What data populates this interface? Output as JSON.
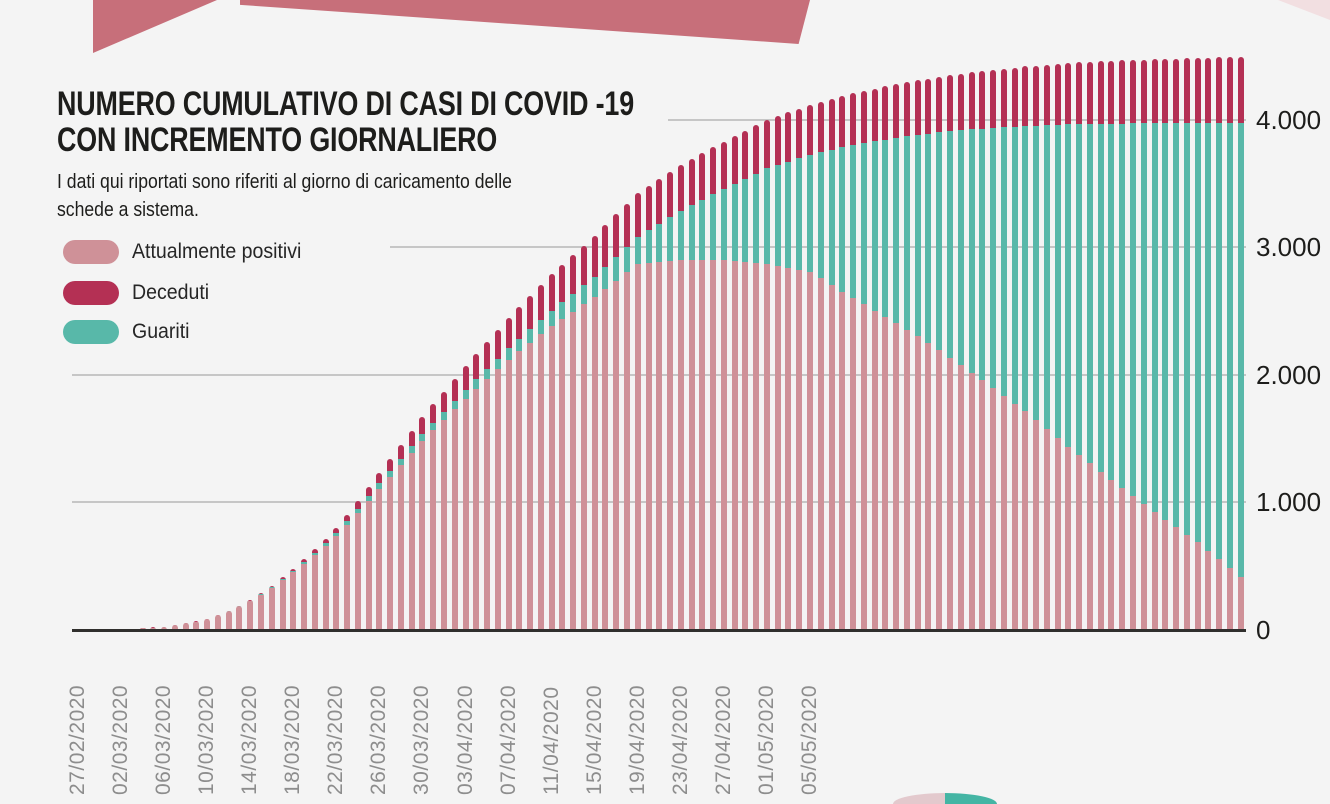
{
  "header": {
    "title_line1": "NUMERO CUMULATIVO DI CASI DI COVID -19",
    "title_line2": "CON INCREMENTO GIORNALIERO",
    "subtitle_line1": "I dati qui riportati sono riferiti al giorno di caricamento delle",
    "subtitle_line2": "schede a sistema."
  },
  "legend": [
    {
      "label": "Attualmente positivi",
      "color": "#cf9198"
    },
    {
      "label": "Deceduti",
      "color": "#b43054"
    },
    {
      "label": "Guariti",
      "color": "#58b8a9"
    }
  ],
  "colors": {
    "background": "#f4f4f4",
    "positivi": "#cf9198",
    "deceduti": "#b43054",
    "guariti": "#58b8a9",
    "gridline": "#c6c6c6",
    "axis_line": "#302f2d",
    "x_label_gray": "#8d8d8d",
    "text_dark": "#1d1d1b",
    "decor_rose": "#c76f7a",
    "decor_pale_pink": "#f2dfe1",
    "decor_hump_pink": "#e3c9cd",
    "decor_hump_teal": "#44b5a4"
  },
  "chart_data": {
    "type": "bar",
    "stacked": true,
    "title": "NUMERO CUMULATIVO DI CASI DI COVID -19 CON INCREMENTO GIORNALIERO",
    "grid": "horizontal",
    "legend_position": "top-left",
    "ylim": [
      0,
      4500
    ],
    "y_tick_values": [
      0,
      1000,
      2000,
      3000,
      4000
    ],
    "y_tick_labels": [
      "0",
      "1.000",
      "2.000",
      "3.000",
      "4.000"
    ],
    "x_start_date": "27/02/2020",
    "x_tick_every_days": 4,
    "x_tick_labels": [
      "27/02/2020",
      "02/03/2020",
      "06/03/2020",
      "10/03/2020",
      "14/03/2020",
      "18/03/2020",
      "22/03/2020",
      "26/03/2020",
      "30/03/2020",
      "03/04/2020",
      "07/04/2020",
      "11/04/2020",
      "15/04/2020",
      "19/04/2020",
      "23/04/2020",
      "27/04/2020",
      "01/05/2020",
      "05/05/2020"
    ],
    "stack_order_bottom_to_top": [
      "Attualmente positivi",
      "Guariti",
      "Deceduti"
    ],
    "series": [
      {
        "name": "Attualmente positivi",
        "color": "#cf9198",
        "values": [
          3,
          4,
          4,
          5,
          6,
          10,
          14,
          19,
          24,
          37,
          51,
          66,
          83,
          115,
          147,
          185,
          226,
          278,
          331,
          392,
          455,
          520,
          587,
          660,
          734,
          823,
          916,
          1010,
          1107,
          1200,
          1295,
          1389,
          1485,
          1567,
          1649,
          1733,
          1815,
          1891,
          1967,
          2044,
          2120,
          2186,
          2252,
          2318,
          2385,
          2441,
          2497,
          2554,
          2610,
          2675,
          2739,
          2805,
          2870,
          2877,
          2884,
          2893,
          2900,
          2899,
          2900,
          2899,
          2900,
          2892,
          2885,
          2877,
          2870,
          2854,
          2839,
          2823,
          2808,
          2757,
          2704,
          2652,
          2600,
          2553,
          2504,
          2458,
          2410,
          2356,
          2302,
          2249,
          2195,
          2136,
          2077,
          2019,
          1960,
          1899,
          1838,
          1776,
          1715,
          1645,
          1576,
          1507,
          1437,
          1372,
          1306,
          1240,
          1174,
          1111,
          1049,
          986,
          924,
          866,
          807,
          748,
          690,
          621,
          553,
          483,
          415
        ]
      },
      {
        "name": "Guariti",
        "color": "#58b8a9",
        "values": [
          0,
          0,
          0,
          0,
          0,
          0,
          0,
          0,
          0,
          0,
          0,
          0,
          0,
          0,
          1,
          2,
          3,
          4,
          6,
          7,
          9,
          14,
          19,
          23,
          28,
          32,
          36,
          41,
          45,
          48,
          50,
          53,
          55,
          59,
          63,
          66,
          70,
          75,
          80,
          85,
          90,
          98,
          105,
          113,
          120,
          130,
          140,
          150,
          160,
          174,
          188,
          201,
          215,
          259,
          303,
          346,
          390,
          433,
          475,
          518,
          560,
          608,
          655,
          703,
          750,
          793,
          835,
          878,
          920,
          991,
          1063,
          1134,
          1205,
          1266,
          1328,
          1389,
          1450,
          1515,
          1580,
          1644,
          1709,
          1775,
          1841,
          1907,
          1973,
          2039,
          2105,
          2172,
          2238,
          2311,
          2384,
          2456,
          2529,
          2596,
          2663,
          2731,
          2798,
          2861,
          2924,
          2987,
          3050,
          3109,
          3168,
          3228,
          3287,
          3357,
          3426,
          3496,
          3565
        ]
      },
      {
        "name": "Deceduti",
        "color": "#b43054",
        "values": [
          0,
          0,
          0,
          0,
          0,
          0,
          1,
          1,
          1,
          1,
          1,
          2,
          2,
          3,
          4,
          5,
          6,
          8,
          11,
          13,
          16,
          21,
          27,
          32,
          38,
          48,
          58,
          68,
          78,
          91,
          104,
          117,
          130,
          144,
          158,
          171,
          185,
          199,
          213,
          226,
          240,
          251,
          263,
          274,
          285,
          294,
          303,
          311,
          320,
          326,
          333,
          339,
          345,
          349,
          353,
          356,
          360,
          363,
          365,
          368,
          370,
          373,
          375,
          378,
          380,
          383,
          386,
          389,
          392,
          395,
          398,
          402,
          405,
          409,
          413,
          416,
          420,
          424,
          428,
          432,
          436,
          440,
          444,
          448,
          452,
          456,
          460,
          463,
          467,
          471,
          474,
          477,
          481,
          484,
          487,
          490,
          493,
          496,
          498,
          501,
          503,
          505,
          507,
          509,
          510,
          511,
          512,
          513,
          514
        ]
      }
    ]
  }
}
